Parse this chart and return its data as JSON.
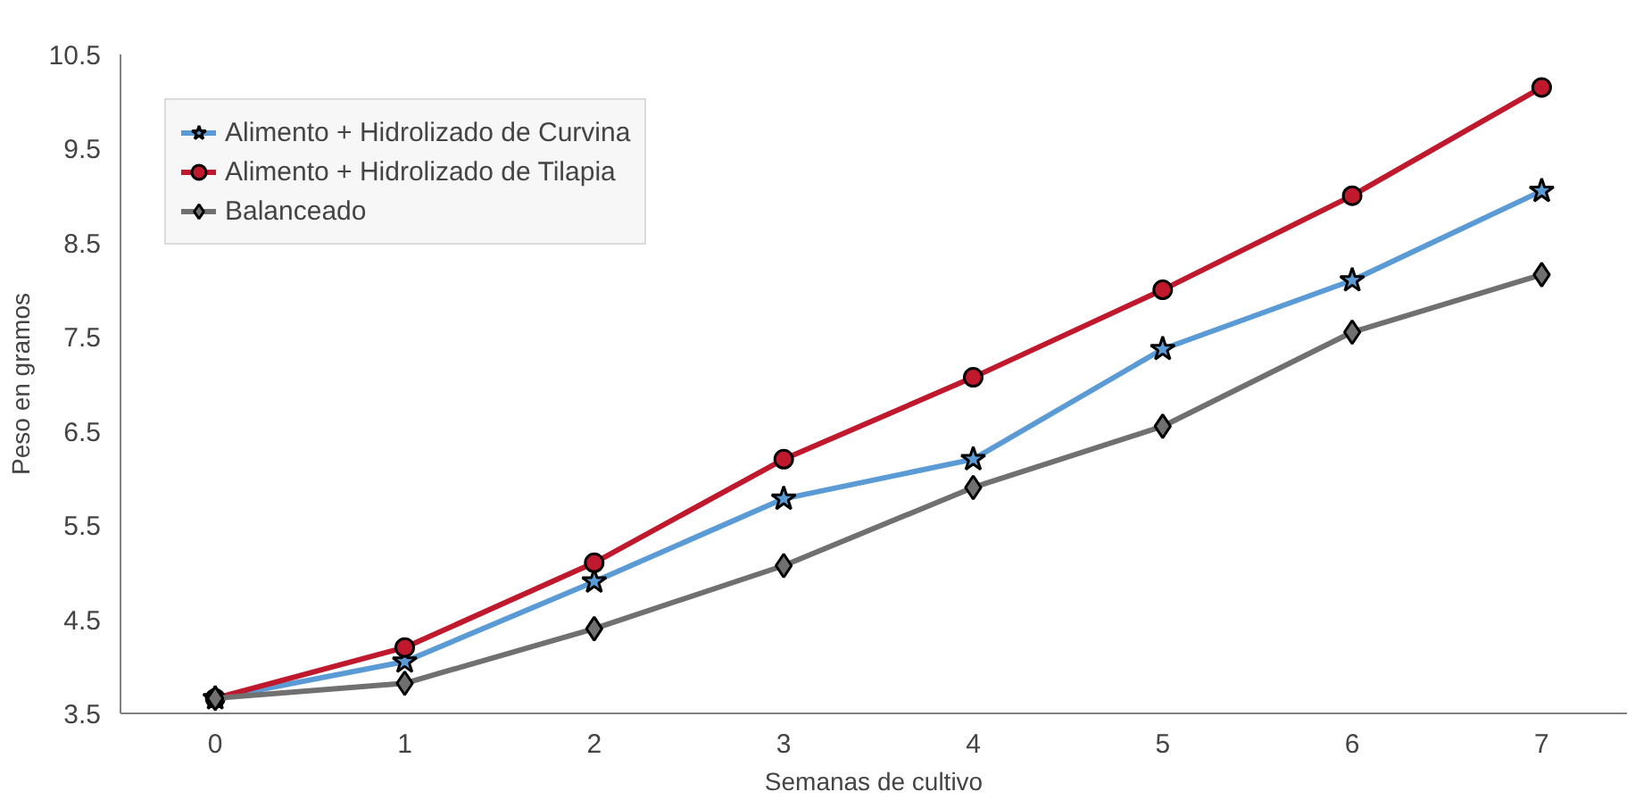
{
  "chart_data": {
    "type": "line",
    "xlabel": "Semanas de cultivo",
    "ylabel": "Peso en gramos",
    "categories": [
      "0",
      "1",
      "2",
      "3",
      "4",
      "5",
      "6",
      "7"
    ],
    "series": [
      {
        "name": "Alimento + Hidrolizado de Curvina",
        "color": "#5b9bd5",
        "marker": "star",
        "values": [
          3.66,
          4.05,
          4.9,
          5.78,
          6.2,
          7.37,
          8.1,
          9.05
        ]
      },
      {
        "name": "Alimento + Hidrolizado de Tilapia",
        "color": "#c0182c",
        "marker": "circle",
        "values": [
          3.66,
          4.2,
          5.1,
          6.2,
          7.07,
          8.0,
          9.0,
          10.15
        ]
      },
      {
        "name": "Balanceado",
        "color": "#707070",
        "marker": "diamond",
        "values": [
          3.66,
          3.82,
          4.4,
          5.07,
          5.9,
          6.55,
          7.55,
          8.16
        ]
      }
    ],
    "ylim": [
      3.5,
      10.5
    ],
    "yticks": [
      3.5,
      4.5,
      5.5,
      6.5,
      7.5,
      8.5,
      9.5,
      10.5
    ],
    "grid": false,
    "legend": "top left",
    "line_style": "solid"
  }
}
